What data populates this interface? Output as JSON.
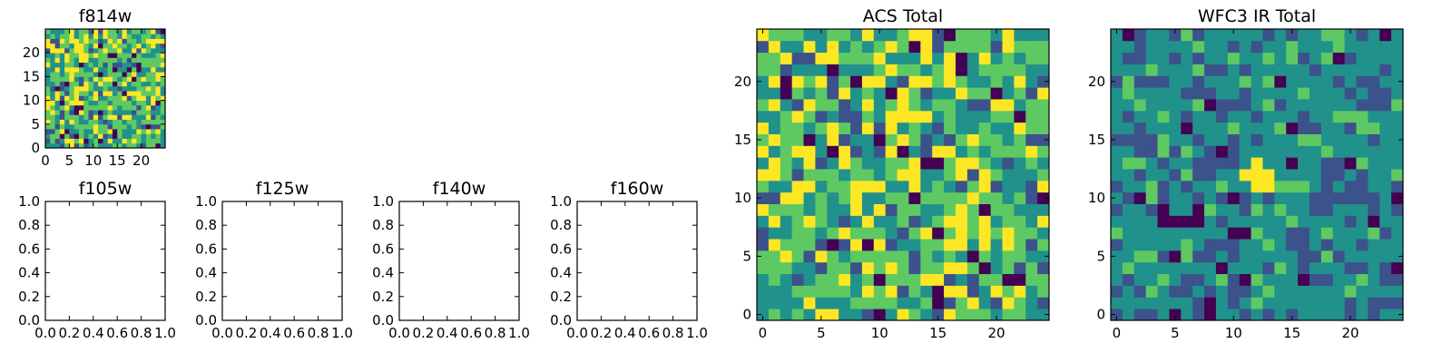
{
  "colormap": [
    "#440154",
    "#3b528b",
    "#21918c",
    "#5ec962",
    "#fde725"
  ],
  "chart_data": [
    {
      "id": "f814w",
      "type": "heatmap",
      "title": "f814w",
      "grid_size": 25,
      "xlim": [
        0,
        25
      ],
      "ylim": [
        0,
        25
      ],
      "xticks": [
        0,
        5,
        10,
        15,
        20
      ],
      "yticks": [
        0,
        5,
        10,
        15,
        20
      ],
      "xtick_labels": [
        "0",
        "5",
        "10",
        "15",
        "20"
      ],
      "ytick_labels": [
        "0",
        "5",
        "10",
        "15",
        "20"
      ],
      "seed": 11,
      "hotspots": []
    },
    {
      "id": "f105w",
      "type": "heatmap",
      "title": "f105w",
      "empty": true,
      "xlim": [
        0,
        1
      ],
      "ylim": [
        0,
        1
      ],
      "xticks": [
        0,
        0.2,
        0.4,
        0.6,
        0.8,
        1.0
      ],
      "yticks": [
        0,
        0.2,
        0.4,
        0.6,
        0.8,
        1.0
      ],
      "xtick_labels": [
        "0.0",
        "0.2",
        "0.4",
        "0.6",
        "0.8",
        "1.0"
      ],
      "ytick_labels": [
        "0.0",
        "0.2",
        "0.4",
        "0.6",
        "0.8",
        "1.0"
      ]
    },
    {
      "id": "f125w",
      "type": "heatmap",
      "title": "f125w",
      "empty": true,
      "xlim": [
        0,
        1
      ],
      "ylim": [
        0,
        1
      ],
      "xticks": [
        0,
        0.2,
        0.4,
        0.6,
        0.8,
        1.0
      ],
      "yticks": [
        0,
        0.2,
        0.4,
        0.6,
        0.8,
        1.0
      ],
      "xtick_labels": [
        "0.0",
        "0.2",
        "0.4",
        "0.6",
        "0.8",
        "1.0"
      ],
      "ytick_labels": [
        "0.0",
        "0.2",
        "0.4",
        "0.6",
        "0.8",
        "1.0"
      ]
    },
    {
      "id": "f140w",
      "type": "heatmap",
      "title": "f140w",
      "empty": true,
      "xlim": [
        0,
        1
      ],
      "ylim": [
        0,
        1
      ],
      "xticks": [
        0,
        0.2,
        0.4,
        0.6,
        0.8,
        1.0
      ],
      "yticks": [
        0,
        0.2,
        0.4,
        0.6,
        0.8,
        1.0
      ],
      "xtick_labels": [
        "0.0",
        "0.2",
        "0.4",
        "0.6",
        "0.8",
        "1.0"
      ],
      "ytick_labels": [
        "0.0",
        "0.2",
        "0.4",
        "0.6",
        "0.8",
        "1.0"
      ]
    },
    {
      "id": "f160w",
      "type": "heatmap",
      "title": "f160w",
      "empty": true,
      "xlim": [
        0,
        1
      ],
      "ylim": [
        0,
        1
      ],
      "xticks": [
        0,
        0.2,
        0.4,
        0.6,
        0.8,
        1.0
      ],
      "yticks": [
        0,
        0.2,
        0.4,
        0.6,
        0.8,
        1.0
      ],
      "xtick_labels": [
        "0.0",
        "0.2",
        "0.4",
        "0.6",
        "0.8",
        "1.0"
      ],
      "ytick_labels": [
        "0.0",
        "0.2",
        "0.4",
        "0.6",
        "0.8",
        "1.0"
      ]
    },
    {
      "id": "acs-total",
      "type": "heatmap",
      "title": "ACS Total",
      "grid_size": 25,
      "xlim": [
        -0.5,
        24.5
      ],
      "ylim": [
        -0.5,
        24.5
      ],
      "xticks": [
        0,
        5,
        10,
        15,
        20
      ],
      "yticks": [
        0,
        5,
        10,
        15,
        20
      ],
      "xtick_labels": [
        "0",
        "5",
        "10",
        "15",
        "20"
      ],
      "ytick_labels": [
        "0",
        "5",
        "10",
        "15",
        "20"
      ],
      "seed": 27,
      "hotspots": [
        [
          6,
          15
        ],
        [
          7,
          14
        ],
        [
          6,
          16
        ],
        [
          10,
          11
        ],
        [
          9,
          4
        ]
      ]
    },
    {
      "id": "wfc3-ir-total",
      "type": "heatmap",
      "title": "WFC3 IR Total",
      "grid_size": 25,
      "xlim": [
        -0.5,
        24.5
      ],
      "ylim": [
        -0.5,
        24.5
      ],
      "xticks": [
        0,
        5,
        10,
        15,
        20
      ],
      "yticks": [
        0,
        5,
        10,
        15,
        20
      ],
      "xtick_labels": [
        "0",
        "5",
        "10",
        "15",
        "20"
      ],
      "ytick_labels": [
        "0",
        "5",
        "10",
        "15",
        "20"
      ],
      "seed": 53,
      "hotspots": [
        [
          12,
          12
        ],
        [
          13,
          12
        ],
        [
          12,
          11
        ],
        [
          13,
          11
        ],
        [
          12,
          13
        ],
        [
          11,
          12
        ]
      ],
      "coldspots": [
        [
          4,
          8
        ],
        [
          5,
          8
        ],
        [
          6,
          8
        ],
        [
          7,
          8
        ],
        [
          10,
          7
        ],
        [
          11,
          7
        ],
        [
          2,
          10
        ],
        [
          8,
          0
        ],
        [
          8,
          1
        ]
      ]
    }
  ]
}
